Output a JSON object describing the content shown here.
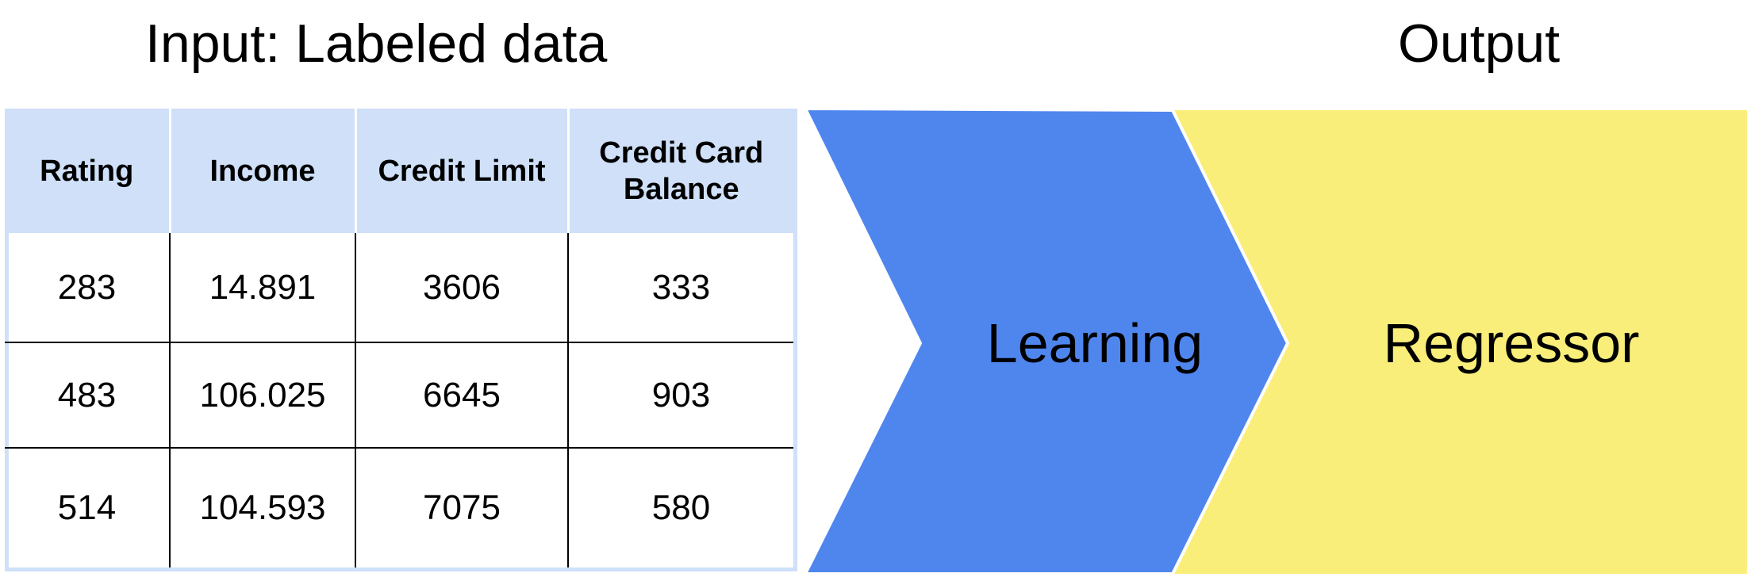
{
  "input_title": "Input: Labeled data",
  "output_title": "Output",
  "table": {
    "headers": [
      "Rating",
      "Income",
      "Credit Limit",
      "Credit Card Balance"
    ],
    "rows": [
      [
        "283",
        "14.891",
        "3606",
        "333"
      ],
      [
        "483",
        "106.025",
        "6645",
        "903"
      ],
      [
        "514",
        "104.593",
        "7075",
        "580"
      ]
    ]
  },
  "process": {
    "learning_label": "Learning",
    "learning_color": "#4f86ee",
    "regressor_label": "Regressor",
    "regressor_color": "#f9ee7a"
  },
  "colors": {
    "table_header_bg": "#cfe0f8"
  }
}
